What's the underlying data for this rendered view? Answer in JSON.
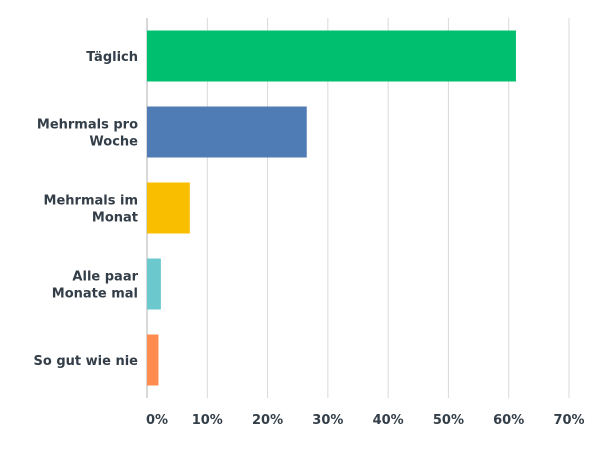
{
  "chart_data": {
    "type": "bar",
    "orientation": "horizontal",
    "categories": [
      [
        "Täglich"
      ],
      [
        "Mehrmals pro",
        "Woche"
      ],
      [
        "Mehrmals im",
        "Monat"
      ],
      [
        "Alle paar",
        "Monate mal"
      ],
      [
        "So gut wie nie"
      ]
    ],
    "values": [
      61.2,
      26.5,
      7.1,
      2.3,
      1.9
    ],
    "colors": [
      "#00bf6f",
      "#507cb6",
      "#f9be00",
      "#6bc8cd",
      "#ff8b4f"
    ],
    "xlim": [
      0,
      70
    ],
    "xticks": [
      0,
      10,
      20,
      30,
      40,
      50,
      60,
      70
    ],
    "xtick_labels": [
      "0%",
      "10%",
      "20%",
      "30%",
      "40%",
      "50%",
      "60%",
      "70%"
    ],
    "grid": true,
    "legend": "none"
  }
}
